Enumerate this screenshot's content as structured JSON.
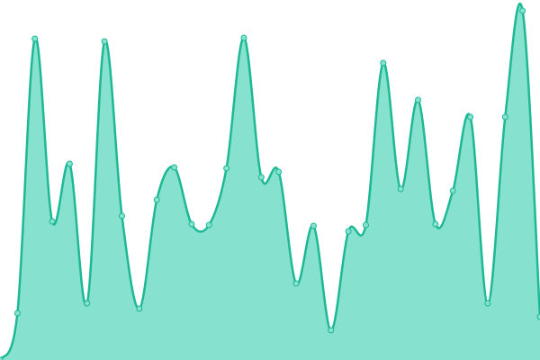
{
  "chart_data": {
    "type": "area",
    "values": [
      0,
      52,
      357,
      154,
      218,
      63,
      354,
      160,
      57,
      178,
      214,
      151,
      150,
      213,
      358,
      203,
      209,
      85,
      149,
      33,
      143,
      150,
      330,
      190,
      289,
      151,
      188,
      270,
      63,
      270,
      388,
      48
    ],
    "ylim": [
      0,
      400
    ],
    "color": "#1db894",
    "fill_color": "#86e1cf"
  }
}
